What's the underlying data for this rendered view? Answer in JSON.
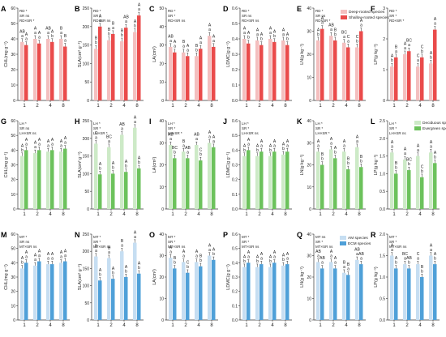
{
  "colors": {
    "deep": "#f4bfbf",
    "shallow": "#ea4b4b",
    "deciduous": "#cdeac7",
    "evergreen": "#6cc25c",
    "am": "#c6def2",
    "ecm": "#4fa0d8"
  },
  "legends": [
    [
      "Deep-rooted species",
      "Shallow-rooted species"
    ],
    [
      "Deciduous species",
      "Evergreen species"
    ],
    [
      "AM species",
      "ECM species"
    ]
  ],
  "chart_data": [
    {
      "panel": "A",
      "type": "bar",
      "row": 0,
      "ylabel": "CHL(mg g⁻¹)",
      "ylim": [
        0,
        60
      ],
      "yticks": [
        "0",
        "10",
        "20",
        "30",
        "40",
        "50",
        "60"
      ],
      "categories": [
        "1",
        "2",
        "4",
        "8"
      ],
      "stats": [
        "RD *",
        "SR ns",
        "RD×SR *"
      ],
      "series": [
        {
          "name": "Deep-rooted species",
          "values": [
            38,
            40,
            40,
            40
          ]
        },
        {
          "name": "Shallow-rooted species",
          "values": [
            36,
            37,
            38,
            35
          ]
        }
      ],
      "labels": [
        [
          "AB a",
          "A a",
          "AB a",
          "B a"
        ],
        [
          "A a",
          "A a",
          "A b",
          "B a"
        ]
      ]
    },
    {
      "panel": "B",
      "type": "bar",
      "row": 0,
      "ylabel": "SLA(cm² g⁻¹)",
      "ylim": [
        0,
        250
      ],
      "yticks": [
        "0",
        "50",
        "100",
        "150",
        "200",
        "250"
      ],
      "categories": [
        "1",
        "2",
        "4",
        "8"
      ],
      "stats": [
        "RD *",
        "SR *",
        "RD×SR ns"
      ],
      "series": [
        {
          "name": "Deep-rooted species",
          "values": [
            140,
            163,
            160,
            185
          ]
        },
        {
          "name": "Shallow-rooted species",
          "values": [
            200,
            180,
            197,
            230
          ]
        }
      ],
      "labels": [
        [
          "B b",
          "B b",
          "B b",
          "A b"
        ],
        [
          "A a",
          "B a",
          "AB a",
          "A a"
        ]
      ]
    },
    {
      "panel": "C",
      "type": "bar",
      "row": 0,
      "ylabel": "LA(cm²)",
      "ylim": [
        0,
        50
      ],
      "yticks": [
        "0",
        "10",
        "20",
        "30",
        "40",
        "50"
      ],
      "categories": [
        "1",
        "2",
        "4",
        "8"
      ],
      "stats": [
        "RD *",
        "SR *",
        "RD×SR ns"
      ],
      "series": [
        {
          "name": "Deep-rooted species",
          "values": [
            29,
            26,
            24,
            35
          ]
        },
        {
          "name": "Shallow-rooted species",
          "values": [
            26,
            24,
            28,
            29
          ]
        }
      ],
      "labels": [
        [
          "AB a",
          "B a",
          "B b",
          "A a"
        ],
        [
          "A a",
          "A a",
          "A a",
          "A a"
        ]
      ]
    },
    {
      "panel": "D",
      "type": "bar",
      "row": 0,
      "ylabel": "LDMC(g g⁻¹)",
      "ylim": [
        0,
        0.6
      ],
      "yticks": [
        "0.0",
        "0.1",
        "0.2",
        "0.3",
        "0.4",
        "0.5",
        "0.6"
      ],
      "categories": [
        "1",
        "2",
        "4",
        "8"
      ],
      "stats": [
        "RD *",
        "SR ns",
        "RD×SR ns"
      ],
      "series": [
        {
          "name": "Deep-rooted species",
          "values": [
            0.4,
            0.39,
            0.4,
            0.39
          ]
        },
        {
          "name": "Shallow-rooted species",
          "values": [
            0.37,
            0.36,
            0.38,
            0.36
          ]
        }
      ],
      "labels": [
        [
          "A a",
          "A a",
          "A a",
          "A a"
        ],
        [
          "A b",
          "A b",
          "A b",
          "A b"
        ]
      ]
    },
    {
      "panel": "E",
      "type": "bar",
      "row": 0,
      "ylabel": "LN(g kg⁻¹)",
      "ylim": [
        0,
        40
      ],
      "yticks": [
        "0",
        "10",
        "20",
        "30",
        "40"
      ],
      "categories": [
        "1",
        "2",
        "4",
        "8"
      ],
      "stats": [
        "RD *",
        "SR ns",
        "RD×SR *"
      ],
      "series": [
        {
          "name": "Deep-rooted species",
          "values": [
            26,
            28,
            25,
            23
          ]
        },
        {
          "name": "Shallow-rooted species",
          "values": [
            31,
            26,
            23,
            30
          ]
        }
      ],
      "labels": [
        [
          "A b",
          "AB a",
          "BC a",
          "C b"
        ],
        [
          "A a",
          "B b",
          "C a",
          "A a"
        ]
      ]
    },
    {
      "panel": "F",
      "type": "bar",
      "row": 0,
      "ylabel": "LP(g kg⁻¹)",
      "ylim": [
        0,
        3
      ],
      "yticks": [
        "0",
        "1",
        "2",
        "3"
      ],
      "categories": [
        "1",
        "2",
        "4",
        "8"
      ],
      "stats": [
        "RD *",
        "SR *",
        "RD×SR *"
      ],
      "series": [
        {
          "name": "Deep-rooted species",
          "values": [
            1.1,
            1.5,
            1.1,
            1.2
          ]
        },
        {
          "name": "Shallow-rooted species",
          "values": [
            1.4,
            1.6,
            1.4,
            2.3
          ]
        }
      ],
      "labels": [
        [
          "A b",
          "A a",
          "C a",
          "A b"
        ],
        [
          "B a",
          "BC a",
          "C b",
          "A a"
        ]
      ]
    },
    {
      "panel": "G",
      "type": "bar",
      "row": 1,
      "ylabel": "CHL(mg g⁻¹)",
      "ylim": [
        0,
        60
      ],
      "yticks": [
        "0",
        "10",
        "20",
        "30",
        "40",
        "50",
        "60"
      ],
      "categories": [
        "1",
        "2",
        "4",
        "8"
      ],
      "stats": [
        "LH *",
        "SR ns",
        "LH×SR ns"
      ],
      "series": [
        {
          "name": "Deciduous species",
          "values": [
            36,
            38,
            39,
            39
          ]
        },
        {
          "name": "Evergreen species",
          "values": [
            40,
            40,
            40,
            41
          ]
        }
      ],
      "labels": [
        [
          "A b",
          "A a",
          "A a",
          "A a"
        ],
        [
          "A a",
          "A a",
          "A a",
          "A a"
        ]
      ]
    },
    {
      "panel": "H",
      "type": "bar",
      "row": 1,
      "ylabel": "SLA(cm² g⁻¹)",
      "ylim": [
        0,
        250
      ],
      "yticks": [
        "0",
        "50",
        "100",
        "150",
        "200",
        "250"
      ],
      "categories": [
        "1",
        "2",
        "4",
        "8"
      ],
      "stats": [
        "LH *",
        "SR *",
        "LH×SR *"
      ],
      "series": [
        {
          "name": "Deciduous species",
          "values": [
            185,
            175,
            210,
            230
          ]
        },
        {
          "name": "Evergreen species",
          "values": [
            98,
            100,
            105,
            115
          ]
        }
      ],
      "labels": [
        [
          "C a",
          "BC a",
          "AB a",
          "A a"
        ],
        [
          "A b",
          "A b",
          "A b",
          "A b"
        ]
      ]
    },
    {
      "panel": "I",
      "type": "bar",
      "row": 1,
      "ylabel": "LA(cm²)",
      "ylim": [
        0,
        40
      ],
      "yticks": [
        "0",
        "10",
        "20",
        "30",
        "40"
      ],
      "categories": [
        "1",
        "2",
        "4",
        "8"
      ],
      "stats": [
        "LH *",
        "SR *",
        "LH×SR *"
      ],
      "series": [
        {
          "name": "Deciduous species",
          "values": [
            29,
            26,
            29,
            30
          ]
        },
        {
          "name": "Evergreen species",
          "values": [
            23,
            23,
            22,
            28
          ]
        }
      ],
      "labels": [
        [
          "AB a",
          "B a",
          "AB a",
          "A a"
        ],
        [
          "BC b",
          "AB a",
          "C b",
          "A a"
        ]
      ]
    },
    {
      "panel": "J",
      "type": "bar",
      "row": 1,
      "ylabel": "LDMC(g g⁻¹)",
      "ylim": [
        0,
        0.6
      ],
      "yticks": [
        "0.0",
        "0.1",
        "0.2",
        "0.3",
        "0.4",
        "0.5",
        "0.6"
      ],
      "categories": [
        "1",
        "2",
        "4",
        "8"
      ],
      "stats": [
        "LH *",
        "SR *",
        "LH×SR ns"
      ],
      "series": [
        {
          "name": "Deciduous species",
          "values": [
            0.36,
            0.36,
            0.36,
            0.37
          ]
        },
        {
          "name": "Evergreen species",
          "values": [
            0.4,
            0.39,
            0.39,
            0.39
          ]
        }
      ],
      "labels": [
        [
          "A b",
          "A b",
          "A b",
          "A b"
        ],
        [
          "A a",
          "A a",
          "A a",
          "A a"
        ]
      ]
    },
    {
      "panel": "K",
      "type": "bar",
      "row": 1,
      "ylabel": "LN(g kg⁻¹)",
      "ylim": [
        0,
        40
      ],
      "yticks": [
        "0",
        "10",
        "20",
        "30",
        "40"
      ],
      "categories": [
        "1",
        "2",
        "4",
        "8"
      ],
      "stats": [
        "LH *",
        "SR *",
        "LH×SR *"
      ],
      "series": [
        {
          "name": "Deciduous species",
          "values": [
            26,
            27,
            26,
            28
          ]
        },
        {
          "name": "Evergreen species",
          "values": [
            20,
            23,
            18,
            19
          ]
        }
      ],
      "labels": [
        [
          "A a",
          "A a",
          "A a",
          "A a"
        ],
        [
          "B b",
          "A b",
          "B b",
          "B b"
        ]
      ]
    },
    {
      "panel": "L",
      "type": "bar",
      "row": 1,
      "ylabel": "LP(g kg⁻¹)",
      "ylim": [
        0,
        2.5
      ],
      "yticks": [
        "0.0",
        "0.5",
        "1.0",
        "1.5",
        "2.0",
        "2.5"
      ],
      "categories": [
        "1",
        "2",
        "4",
        "8"
      ],
      "stats": [
        "LH *",
        "SR *",
        "LH×SR ns"
      ],
      "series": [
        {
          "name": "Deciduous species",
          "values": [
            1.6,
            1.4,
            1.5,
            1.6
          ]
        },
        {
          "name": "Evergreen species",
          "values": [
            1.0,
            1.1,
            0.9,
            1.3
          ]
        }
      ],
      "labels": [
        [
          "A a",
          "A a",
          "A a",
          "A a"
        ],
        [
          "B b",
          "BC b",
          "C b",
          "A b"
        ]
      ]
    },
    {
      "panel": "M",
      "type": "bar",
      "row": 2,
      "ylabel": "CHL(mg g⁻¹)",
      "ylim": [
        0,
        60
      ],
      "yticks": [
        "0",
        "10",
        "20",
        "30",
        "40",
        "50",
        "60"
      ],
      "categories": [
        "1",
        "2",
        "4",
        "8"
      ],
      "stats": [
        "MT *",
        "SR ns",
        "MT×SR ns"
      ],
      "series": [
        {
          "name": "AM species",
          "values": [
            36,
            38,
            39,
            40
          ]
        },
        {
          "name": "ECM species",
          "values": [
            40,
            41,
            39,
            41
          ]
        }
      ],
      "labels": [
        [
          "A b",
          "A a",
          "A a",
          "A a"
        ],
        [
          "A a",
          "A a",
          "A a",
          "A a"
        ]
      ]
    },
    {
      "panel": "N",
      "type": "bar",
      "row": 2,
      "ylabel": "SLA(cm² g⁻¹)",
      "ylim": [
        0,
        250
      ],
      "yticks": [
        "0",
        "50",
        "100",
        "150",
        "200",
        "250"
      ],
      "categories": [
        "1",
        "2",
        "4",
        "8"
      ],
      "stats": [
        "MT *",
        "SR *",
        "MT×SR ns"
      ],
      "series": [
        {
          "name": "AM species",
          "values": [
            185,
            180,
            200,
            225
          ]
        },
        {
          "name": "ECM species",
          "values": [
            115,
            120,
            125,
            135
          ]
        }
      ],
      "labels": [
        [
          "B a",
          "B a",
          "B a",
          "A a"
        ],
        [
          "A b",
          "A b",
          "A b",
          "A b"
        ]
      ]
    },
    {
      "panel": "O",
      "type": "bar",
      "row": 2,
      "ylabel": "LA(cm²)",
      "ylim": [
        0,
        40
      ],
      "yticks": [
        "0",
        "10",
        "20",
        "30",
        "40"
      ],
      "categories": [
        "1",
        "2",
        "4",
        "8"
      ],
      "stats": [
        "MT *",
        "SR *",
        "MT×SR ns"
      ],
      "series": [
        {
          "name": "AM species",
          "values": [
            29,
            27,
            27,
            30
          ]
        },
        {
          "name": "ECM species",
          "values": [
            24,
            22,
            25,
            28
          ]
        }
      ],
      "labels": [
        [
          "A a",
          "A a",
          "A a",
          "A a"
        ],
        [
          "B b",
          "C b",
          "B b",
          "A b"
        ]
      ]
    },
    {
      "panel": "P",
      "type": "bar",
      "row": 2,
      "ylabel": "LDMC(g g⁻¹)",
      "ylim": [
        0,
        0.6
      ],
      "yticks": [
        "0.0",
        "0.1",
        "0.2",
        "0.3",
        "0.4",
        "0.5",
        "0.6"
      ],
      "categories": [
        "1",
        "2",
        "4",
        "8"
      ],
      "stats": [
        "MT *",
        "SR *",
        "MT×SR ns"
      ],
      "series": [
        {
          "name": "AM species",
          "values": [
            0.37,
            0.37,
            0.37,
            0.38
          ]
        },
        {
          "name": "ECM species",
          "values": [
            0.4,
            0.39,
            0.4,
            0.39
          ]
        }
      ],
      "labels": [
        [
          "A b",
          "A b",
          "A b",
          "A b"
        ],
        [
          "A a",
          "A a",
          "A a",
          "A a"
        ]
      ]
    },
    {
      "panel": "Q",
      "type": "bar",
      "row": 2,
      "ylabel": "LN(g kg⁻¹)",
      "ylim": [
        0,
        40
      ],
      "yticks": [
        "0",
        "10",
        "20",
        "30",
        "40"
      ],
      "categories": [
        "1",
        "2",
        "4",
        "8"
      ],
      "stats": [
        "MT ns",
        "SR *",
        "MT×SR ns"
      ],
      "series": [
        {
          "name": "AM species",
          "values": [
            27,
            27,
            22,
            28
          ]
        },
        {
          "name": "ECM species",
          "values": [
            24,
            24,
            21,
            26
          ]
        }
      ],
      "labels": [
        [
          "AB a",
          "A a",
          "B a",
          "AB a"
        ],
        [
          "AB a",
          "A a",
          "B a",
          "AB a"
        ]
      ]
    },
    {
      "panel": "R",
      "type": "bar",
      "row": 2,
      "ylabel": "LP(g kg⁻¹)",
      "ylim": [
        0,
        2.0
      ],
      "yticks": [
        "0.0",
        "0.5",
        "1.0",
        "1.5",
        "2.0"
      ],
      "categories": [
        "1",
        "2",
        "4",
        "8"
      ],
      "stats": [
        "MT *",
        "SR *",
        "MT×SR ns"
      ],
      "series": [
        {
          "name": "AM species",
          "values": [
            1.5,
            1.3,
            1.3,
            1.5
          ]
        },
        {
          "name": "ECM species",
          "values": [
            1.2,
            1.2,
            1.0,
            1.3
          ]
        }
      ],
      "labels": [
        [
          "A a",
          "BC a",
          "C a",
          "A a"
        ],
        [
          "A b",
          "AB b",
          "B b",
          "A b"
        ]
      ]
    }
  ]
}
